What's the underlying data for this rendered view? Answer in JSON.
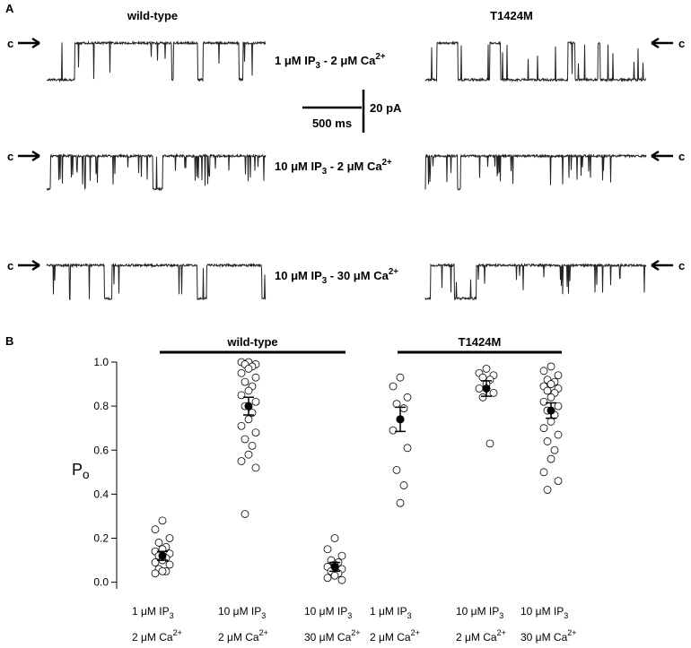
{
  "panel_a": {
    "label": "A",
    "left_title": "wild-type",
    "right_title": "T1424M",
    "rows": [
      {
        "left_marker": "c",
        "right_marker": "c",
        "condition": [
          {
            "text": "1 μM IP"
          },
          {
            "text": "3",
            "shift": "sub"
          },
          {
            "text": " - 2 μM Ca"
          },
          {
            "text": "2+",
            "shift": "sup"
          }
        ]
      },
      {
        "left_marker": "c",
        "right_marker": "c",
        "condition": [
          {
            "text": "10 μM IP"
          },
          {
            "text": "3",
            "shift": "sub"
          },
          {
            "text": " - 2 μM Ca"
          },
          {
            "text": "2+",
            "shift": "sup"
          }
        ]
      },
      {
        "left_marker": "c",
        "right_marker": "c",
        "condition": [
          {
            "text": "10 μM IP"
          },
          {
            "text": "3",
            "shift": "sub"
          },
          {
            "text": " - 30 μM Ca"
          },
          {
            "text": "2+",
            "shift": "sup"
          }
        ]
      }
    ],
    "scale_time": "500 ms",
    "scale_current": "20 pA"
  },
  "chart_data": {
    "type": "strip",
    "panel_label": "B",
    "y_label": [
      {
        "text": "P"
      },
      {
        "text": "o",
        "shift": "sub"
      }
    ],
    "groups": [
      "wild-type",
      "T1424M"
    ],
    "ylim": [
      -0.03,
      1.0
    ],
    "yticks": [
      {
        "value": 0,
        "label": "0.0"
      },
      0.2,
      0.4,
      0.6,
      0.8,
      {
        "value": 1,
        "label": "1.0"
      }
    ],
    "categories": [
      [
        [
          {
            "text": "1 μM IP"
          },
          {
            "text": "3",
            "shift": "sub"
          }
        ],
        [
          {
            "text": "2 μM Ca"
          },
          {
            "text": "2+",
            "shift": "sup"
          }
        ]
      ],
      [
        [
          {
            "text": "10 μM IP"
          },
          {
            "text": "3",
            "shift": "sub"
          }
        ],
        [
          {
            "text": "2 μM Ca"
          },
          {
            "text": "2+",
            "shift": "sup"
          }
        ]
      ],
      [
        [
          {
            "text": "10 μM IP"
          },
          {
            "text": "3",
            "shift": "sub"
          }
        ],
        [
          {
            "text": "30 μM Ca"
          },
          {
            "text": "2+",
            "shift": "sup"
          }
        ]
      ],
      [
        [
          {
            "text": "1 μM IP"
          },
          {
            "text": "3",
            "shift": "sub"
          }
        ],
        [
          {
            "text": "2 μM Ca"
          },
          {
            "text": "2+",
            "shift": "sup"
          }
        ]
      ],
      [
        [
          {
            "text": "10 μM IP"
          },
          {
            "text": "3",
            "shift": "sub"
          }
        ],
        [
          {
            "text": "2 μM Ca"
          },
          {
            "text": "2+",
            "shift": "sup"
          }
        ]
      ],
      [
        [
          {
            "text": "10 μM IP"
          },
          {
            "text": "3",
            "shift": "sub"
          }
        ],
        [
          {
            "text": "30 μM Ca"
          },
          {
            "text": "2+",
            "shift": "sup"
          }
        ]
      ]
    ],
    "points": [
      [
        0.28,
        0.24,
        0.2,
        0.18,
        0.16,
        0.15,
        0.14,
        0.13,
        0.12,
        0.11,
        0.1,
        0.09,
        0.08,
        0.06,
        0.05,
        0.05,
        0.04
      ],
      [
        1.0,
        1.0,
        0.99,
        0.99,
        0.98,
        0.97,
        0.95,
        0.93,
        0.91,
        0.89,
        0.87,
        0.85,
        0.82,
        0.8,
        0.77,
        0.74,
        0.71,
        0.68,
        0.65,
        0.62,
        0.58,
        0.55,
        0.52,
        0.31
      ],
      [
        0.2,
        0.15,
        0.12,
        0.1,
        0.09,
        0.08,
        0.07,
        0.06,
        0.05,
        0.04,
        0.03,
        0.02,
        0.01
      ],
      [
        0.93,
        0.89,
        0.84,
        0.81,
        0.79,
        0.74,
        0.69,
        0.61,
        0.51,
        0.44,
        0.36
      ],
      [
        0.97,
        0.95,
        0.94,
        0.93,
        0.92,
        0.9,
        0.88,
        0.86,
        0.84,
        0.63
      ],
      [
        0.98,
        0.96,
        0.94,
        0.92,
        0.91,
        0.9,
        0.89,
        0.88,
        0.87,
        0.86,
        0.84,
        0.82,
        0.8,
        0.78,
        0.76,
        0.73,
        0.7,
        0.67,
        0.64,
        0.6,
        0.56,
        0.5,
        0.46,
        0.42
      ]
    ],
    "means": [
      0.12,
      0.8,
      0.07,
      0.74,
      0.88,
      0.78
    ],
    "errors": [
      0.02,
      0.04,
      0.02,
      0.055,
      0.035,
      0.035
    ],
    "point_color": "#ffffff",
    "mean_color": "#000000"
  }
}
